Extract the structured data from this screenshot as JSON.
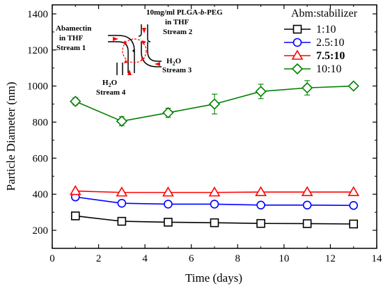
{
  "chart_data": {
    "type": "line",
    "xlabel": "Time (days)",
    "ylabel": "Particle Diameter (nm)",
    "xlim": [
      0,
      14
    ],
    "ylim": [
      100,
      1450
    ],
    "xticks": [
      0,
      2,
      4,
      6,
      8,
      10,
      12,
      14
    ],
    "yticks": [
      200,
      400,
      600,
      800,
      1000,
      1200,
      1400
    ],
    "grid": false,
    "legend_title": "Abm:stabilizer",
    "legend_position": "top-right",
    "x": [
      1,
      3,
      5,
      7,
      9,
      11,
      13
    ],
    "series": [
      {
        "name": "1:10",
        "marker": "square",
        "color": "#000000",
        "bold": false,
        "values": [
          280,
          250,
          245,
          242,
          238,
          237,
          235
        ],
        "errors": [
          12,
          10,
          10,
          10,
          10,
          10,
          10
        ]
      },
      {
        "name": "2.5:10",
        "marker": "circle",
        "color": "#0000ff",
        "bold": false,
        "values": [
          385,
          350,
          345,
          345,
          340,
          340,
          338
        ],
        "errors": [
          10,
          8,
          8,
          8,
          8,
          8,
          8
        ]
      },
      {
        "name": "7.5:10",
        "marker": "triangle",
        "color": "#ff0000",
        "bold": true,
        "values": [
          418,
          410,
          410,
          410,
          412,
          412,
          412
        ],
        "errors": [
          6,
          6,
          6,
          6,
          6,
          6,
          6
        ]
      },
      {
        "name": "10:10",
        "marker": "diamond",
        "color": "#008000",
        "bold": false,
        "values": [
          915,
          805,
          852,
          900,
          970,
          990,
          1000
        ],
        "errors": [
          20,
          25,
          25,
          55,
          40,
          40,
          15
        ]
      }
    ],
    "inset": {
      "stream1_line1": "Abamectin",
      "stream1_line2": "in THF",
      "stream1_line3": "Stream 1",
      "stream2_line1_pre": "10mg/ml PLGA-",
      "stream2_line1_italic": "b",
      "stream2_line1_post": "-PEG",
      "stream2_line2": "in THF",
      "stream2_line3": "Stream 2",
      "stream3_line1_pre": "H",
      "stream3_line1_sub": "2",
      "stream3_line1_post": "O",
      "stream3_line2": "Stream 3",
      "stream4_line1_pre": "H",
      "stream4_line1_sub": "2",
      "stream4_line1_post": "O",
      "stream4_line2": "Stream 4"
    }
  }
}
